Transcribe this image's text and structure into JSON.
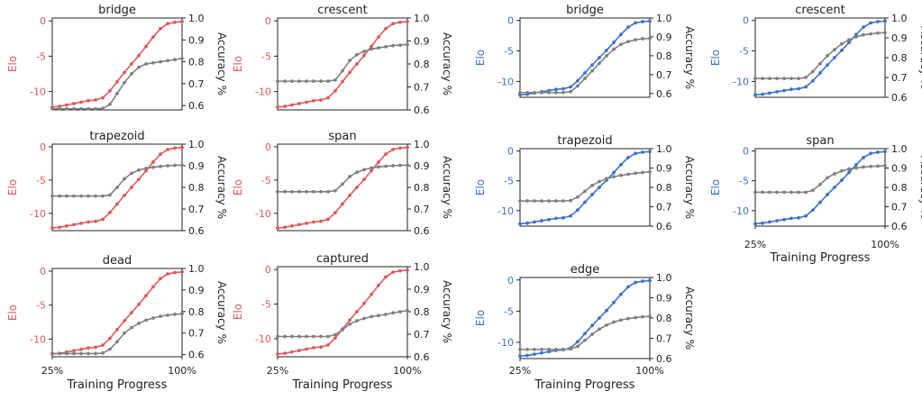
{
  "figure": {
    "xlabel": "Training Progress",
    "x_tick_labels": [
      "25%",
      "100%"
    ],
    "left_label": "Elo",
    "right_label": "Accuracy %",
    "colors": {
      "red": "#dd5a5a",
      "blue": "#3d72c9",
      "gray": "#808080"
    }
  },
  "chart_data": [
    {
      "type": "line",
      "title": "bridge",
      "elo_color": "red",
      "x": [
        25,
        29.2,
        33.3,
        37.5,
        41.7,
        45.8,
        50,
        54.2,
        58.3,
        62.5,
        66.7,
        70.8,
        75,
        79.2,
        83.3,
        87.5,
        91.7,
        95.8,
        100
      ],
      "series": [
        {
          "axis": "left",
          "values": [
            -12.2,
            -12.1,
            -11.9,
            -11.7,
            -11.5,
            -11.3,
            -11.2,
            -10.9,
            -9.9,
            -8.6,
            -7.3,
            -6.1,
            -4.9,
            -3.6,
            -2.3,
            -1.1,
            -0.4,
            -0.2,
            -0.1
          ]
        },
        {
          "axis": "right",
          "values": [
            0.585,
            0.585,
            0.585,
            0.585,
            0.585,
            0.585,
            0.585,
            0.587,
            0.605,
            0.655,
            0.705,
            0.745,
            0.775,
            0.79,
            0.795,
            0.8,
            0.805,
            0.81,
            0.815
          ]
        }
      ],
      "ylim": [
        -12.6,
        0.4
      ],
      "y2lim": [
        0.58,
        1.0
      ],
      "yticks": [
        0,
        -5,
        -10
      ],
      "y2ticks": [
        1.0,
        0.9,
        0.8,
        0.7,
        0.6
      ]
    },
    {
      "type": "line",
      "title": "crescent",
      "elo_color": "red",
      "x": [
        25,
        29.2,
        33.3,
        37.5,
        41.7,
        45.8,
        50,
        54.2,
        58.3,
        62.5,
        66.7,
        70.8,
        75,
        79.2,
        83.3,
        87.5,
        91.7,
        95.8,
        100
      ],
      "series": [
        {
          "axis": "left",
          "values": [
            -12.2,
            -12.1,
            -11.9,
            -11.7,
            -11.5,
            -11.3,
            -11.2,
            -10.9,
            -9.9,
            -8.6,
            -7.3,
            -6.1,
            -4.9,
            -3.6,
            -2.3,
            -1.1,
            -0.4,
            -0.2,
            -0.1
          ]
        },
        {
          "axis": "right",
          "values": [
            0.725,
            0.725,
            0.725,
            0.725,
            0.725,
            0.725,
            0.725,
            0.725,
            0.73,
            0.77,
            0.815,
            0.84,
            0.855,
            0.865,
            0.87,
            0.875,
            0.88,
            0.882,
            0.885
          ]
        }
      ],
      "ylim": [
        -12.6,
        0.4
      ],
      "y2lim": [
        0.6,
        1.0
      ],
      "yticks": [
        0,
        -5,
        -10
      ],
      "y2ticks": [
        1.0,
        0.9,
        0.8,
        0.7,
        0.6
      ]
    },
    {
      "type": "line",
      "title": "bridge",
      "elo_color": "blue",
      "x": [
        25,
        29.2,
        33.3,
        37.5,
        41.7,
        45.8,
        50,
        54.2,
        58.3,
        62.5,
        66.7,
        70.8,
        75,
        79.2,
        83.3,
        87.5,
        91.7,
        95.8,
        100
      ],
      "series": [
        {
          "axis": "left",
          "values": [
            -12.2,
            -12.1,
            -11.9,
            -11.7,
            -11.5,
            -11.3,
            -11.2,
            -10.9,
            -9.9,
            -8.6,
            -7.3,
            -6.1,
            -4.9,
            -3.6,
            -2.3,
            -1.1,
            -0.4,
            -0.2,
            -0.1
          ]
        },
        {
          "axis": "right",
          "values": [
            0.605,
            0.605,
            0.605,
            0.605,
            0.605,
            0.605,
            0.605,
            0.61,
            0.64,
            0.68,
            0.72,
            0.76,
            0.8,
            0.835,
            0.86,
            0.875,
            0.885,
            0.89,
            0.892
          ]
        }
      ],
      "ylim": [
        -12.6,
        0.4
      ],
      "y2lim": [
        0.58,
        1.0
      ],
      "yticks": [
        0,
        -5,
        -10
      ],
      "y2ticks": [
        1.0,
        0.9,
        0.8,
        0.7,
        0.6
      ]
    },
    {
      "type": "line",
      "title": "crescent",
      "elo_color": "blue",
      "x": [
        25,
        29.2,
        33.3,
        37.5,
        41.7,
        45.8,
        50,
        54.2,
        58.3,
        62.5,
        66.7,
        70.8,
        75,
        79.2,
        83.3,
        87.5,
        91.7,
        95.8,
        100
      ],
      "series": [
        {
          "axis": "left",
          "values": [
            -12.2,
            -12.1,
            -11.9,
            -11.7,
            -11.5,
            -11.3,
            -11.2,
            -10.9,
            -9.9,
            -8.6,
            -7.3,
            -6.1,
            -4.9,
            -3.6,
            -2.3,
            -1.1,
            -0.4,
            -0.2,
            -0.1
          ]
        },
        {
          "axis": "right",
          "values": [
            0.695,
            0.695,
            0.695,
            0.695,
            0.695,
            0.695,
            0.695,
            0.7,
            0.73,
            0.77,
            0.81,
            0.84,
            0.87,
            0.89,
            0.905,
            0.915,
            0.92,
            0.924,
            0.926
          ]
        }
      ],
      "ylim": [
        -12.6,
        0.4
      ],
      "y2lim": [
        0.6,
        1.0
      ],
      "yticks": [
        0,
        -5,
        -10
      ],
      "y2ticks": [
        1.0,
        0.9,
        0.8,
        0.7,
        0.6
      ]
    },
    {
      "type": "line",
      "title": "trapezoid",
      "elo_color": "red",
      "x": [
        25,
        29.2,
        33.3,
        37.5,
        41.7,
        45.8,
        50,
        54.2,
        58.3,
        62.5,
        66.7,
        70.8,
        75,
        79.2,
        83.3,
        87.5,
        91.7,
        95.8,
        100
      ],
      "series": [
        {
          "axis": "left",
          "values": [
            -12.2,
            -12.1,
            -11.9,
            -11.7,
            -11.5,
            -11.3,
            -11.2,
            -10.9,
            -9.9,
            -8.6,
            -7.3,
            -6.1,
            -4.9,
            -3.6,
            -2.3,
            -1.1,
            -0.4,
            -0.2,
            -0.1
          ]
        },
        {
          "axis": "right",
          "values": [
            0.76,
            0.76,
            0.76,
            0.76,
            0.76,
            0.76,
            0.76,
            0.76,
            0.765,
            0.8,
            0.84,
            0.865,
            0.88,
            0.888,
            0.893,
            0.897,
            0.9,
            0.902,
            0.903
          ]
        }
      ],
      "ylim": [
        -12.6,
        0.4
      ],
      "y2lim": [
        0.6,
        1.0
      ],
      "yticks": [
        0,
        -5,
        -10
      ],
      "y2ticks": [
        1.0,
        0.9,
        0.8,
        0.7,
        0.6
      ]
    },
    {
      "type": "line",
      "title": "span",
      "elo_color": "red",
      "x": [
        25,
        29.2,
        33.3,
        37.5,
        41.7,
        45.8,
        50,
        54.2,
        58.3,
        62.5,
        66.7,
        70.8,
        75,
        79.2,
        83.3,
        87.5,
        91.7,
        95.8,
        100
      ],
      "series": [
        {
          "axis": "left",
          "values": [
            -12.2,
            -12.1,
            -11.9,
            -11.7,
            -11.5,
            -11.3,
            -11.2,
            -10.9,
            -9.9,
            -8.6,
            -7.3,
            -6.1,
            -4.9,
            -3.6,
            -2.3,
            -1.1,
            -0.4,
            -0.2,
            -0.1
          ]
        },
        {
          "axis": "right",
          "values": [
            0.78,
            0.78,
            0.78,
            0.78,
            0.78,
            0.78,
            0.78,
            0.78,
            0.785,
            0.815,
            0.85,
            0.87,
            0.882,
            0.89,
            0.895,
            0.898,
            0.9,
            0.902,
            0.903
          ]
        }
      ],
      "ylim": [
        -12.6,
        0.4
      ],
      "y2lim": [
        0.6,
        1.0
      ],
      "yticks": [
        0,
        -5,
        -10
      ],
      "y2ticks": [
        1.0,
        0.9,
        0.8,
        0.7,
        0.6
      ]
    },
    {
      "type": "line",
      "title": "trapezoid",
      "elo_color": "blue",
      "x": [
        25,
        29.2,
        33.3,
        37.5,
        41.7,
        45.8,
        50,
        54.2,
        58.3,
        62.5,
        66.7,
        70.8,
        75,
        79.2,
        83.3,
        87.5,
        91.7,
        95.8,
        100
      ],
      "series": [
        {
          "axis": "left",
          "values": [
            -12.2,
            -12.1,
            -11.9,
            -11.7,
            -11.5,
            -11.3,
            -11.2,
            -10.9,
            -9.9,
            -8.6,
            -7.3,
            -6.1,
            -4.9,
            -3.6,
            -2.3,
            -1.1,
            -0.4,
            -0.2,
            -0.1
          ]
        },
        {
          "axis": "right",
          "values": [
            0.73,
            0.73,
            0.73,
            0.73,
            0.73,
            0.73,
            0.73,
            0.732,
            0.75,
            0.78,
            0.81,
            0.83,
            0.845,
            0.855,
            0.862,
            0.868,
            0.873,
            0.877,
            0.88
          ]
        }
      ],
      "ylim": [
        -12.6,
        0.4
      ],
      "y2lim": [
        0.6,
        1.0
      ],
      "yticks": [
        0,
        -5,
        -10
      ],
      "y2ticks": [
        1.0,
        0.9,
        0.8,
        0.7,
        0.6
      ]
    },
    {
      "type": "line",
      "title": "span",
      "elo_color": "blue",
      "x": [
        25,
        29.2,
        33.3,
        37.5,
        41.7,
        45.8,
        50,
        54.2,
        58.3,
        62.5,
        66.7,
        70.8,
        75,
        79.2,
        83.3,
        87.5,
        91.7,
        95.8,
        100
      ],
      "series": [
        {
          "axis": "left",
          "values": [
            -12.2,
            -12.1,
            -11.9,
            -11.7,
            -11.5,
            -11.3,
            -11.2,
            -10.9,
            -9.9,
            -8.6,
            -7.3,
            -6.1,
            -4.9,
            -3.6,
            -2.3,
            -1.1,
            -0.4,
            -0.2,
            -0.1
          ]
        },
        {
          "axis": "right",
          "values": [
            0.775,
            0.775,
            0.775,
            0.775,
            0.775,
            0.775,
            0.775,
            0.775,
            0.785,
            0.815,
            0.85,
            0.87,
            0.885,
            0.895,
            0.9,
            0.905,
            0.908,
            0.91,
            0.912
          ]
        }
      ],
      "ylim": [
        -12.6,
        0.4
      ],
      "y2lim": [
        0.6,
        1.0
      ],
      "yticks": [
        0,
        -5,
        -10
      ],
      "y2ticks": [
        1.0,
        0.9,
        0.8,
        0.7,
        0.6
      ]
    },
    {
      "type": "line",
      "title": "dead",
      "elo_color": "red",
      "x": [
        25,
        29.2,
        33.3,
        37.5,
        41.7,
        45.8,
        50,
        54.2,
        58.3,
        62.5,
        66.7,
        70.8,
        75,
        79.2,
        83.3,
        87.5,
        91.7,
        95.8,
        100
      ],
      "series": [
        {
          "axis": "left",
          "values": [
            -12.2,
            -12.1,
            -11.9,
            -11.7,
            -11.5,
            -11.3,
            -11.2,
            -10.9,
            -9.9,
            -8.6,
            -7.3,
            -6.1,
            -4.9,
            -3.6,
            -2.3,
            -1.1,
            -0.4,
            -0.2,
            -0.1
          ]
        },
        {
          "axis": "right",
          "values": [
            0.605,
            0.605,
            0.605,
            0.605,
            0.605,
            0.605,
            0.605,
            0.607,
            0.625,
            0.66,
            0.7,
            0.725,
            0.745,
            0.76,
            0.77,
            0.778,
            0.783,
            0.787,
            0.79
          ]
        }
      ],
      "ylim": [
        -12.6,
        0.4
      ],
      "y2lim": [
        0.59,
        1.0
      ],
      "yticks": [
        0,
        -5,
        -10
      ],
      "y2ticks": [
        1.0,
        0.9,
        0.8,
        0.7,
        0.6
      ]
    },
    {
      "type": "line",
      "title": "captured",
      "elo_color": "red",
      "x": [
        25,
        29.2,
        33.3,
        37.5,
        41.7,
        45.8,
        50,
        54.2,
        58.3,
        62.5,
        66.7,
        70.8,
        75,
        79.2,
        83.3,
        87.5,
        91.7,
        95.8,
        100
      ],
      "series": [
        {
          "axis": "left",
          "values": [
            -12.2,
            -12.1,
            -11.9,
            -11.7,
            -11.5,
            -11.3,
            -11.2,
            -10.9,
            -9.9,
            -8.6,
            -7.3,
            -6.1,
            -4.9,
            -3.6,
            -2.3,
            -1.1,
            -0.4,
            -0.2,
            -0.1
          ]
        },
        {
          "axis": "right",
          "values": [
            0.69,
            0.69,
            0.69,
            0.69,
            0.69,
            0.69,
            0.69,
            0.69,
            0.698,
            0.72,
            0.745,
            0.76,
            0.77,
            0.778,
            0.783,
            0.788,
            0.795,
            0.8,
            0.805
          ]
        }
      ],
      "ylim": [
        -12.6,
        0.4
      ],
      "y2lim": [
        0.6,
        1.0
      ],
      "yticks": [
        0,
        -5,
        -10
      ],
      "y2ticks": [
        1.0,
        0.9,
        0.8,
        0.7,
        0.6
      ]
    },
    {
      "type": "line",
      "title": "edge",
      "elo_color": "blue",
      "x": [
        25,
        29.2,
        33.3,
        37.5,
        41.7,
        45.8,
        50,
        54.2,
        58.3,
        62.5,
        66.7,
        70.8,
        75,
        79.2,
        83.3,
        87.5,
        91.7,
        95.8,
        100
      ],
      "series": [
        {
          "axis": "left",
          "values": [
            -12.2,
            -12.1,
            -11.9,
            -11.7,
            -11.5,
            -11.3,
            -11.2,
            -10.9,
            -9.9,
            -8.6,
            -7.3,
            -6.1,
            -4.9,
            -3.6,
            -2.3,
            -1.1,
            -0.4,
            -0.2,
            -0.1
          ]
        },
        {
          "axis": "right",
          "values": [
            0.645,
            0.645,
            0.645,
            0.645,
            0.645,
            0.645,
            0.645,
            0.647,
            0.66,
            0.69,
            0.72,
            0.745,
            0.765,
            0.78,
            0.79,
            0.797,
            0.802,
            0.806,
            0.808
          ]
        }
      ],
      "ylim": [
        -12.6,
        0.4
      ],
      "y2lim": [
        0.6,
        1.0
      ],
      "yticks": [
        0,
        -5,
        -10
      ],
      "y2ticks": [
        1.0,
        0.9,
        0.8,
        0.7,
        0.6
      ]
    }
  ]
}
